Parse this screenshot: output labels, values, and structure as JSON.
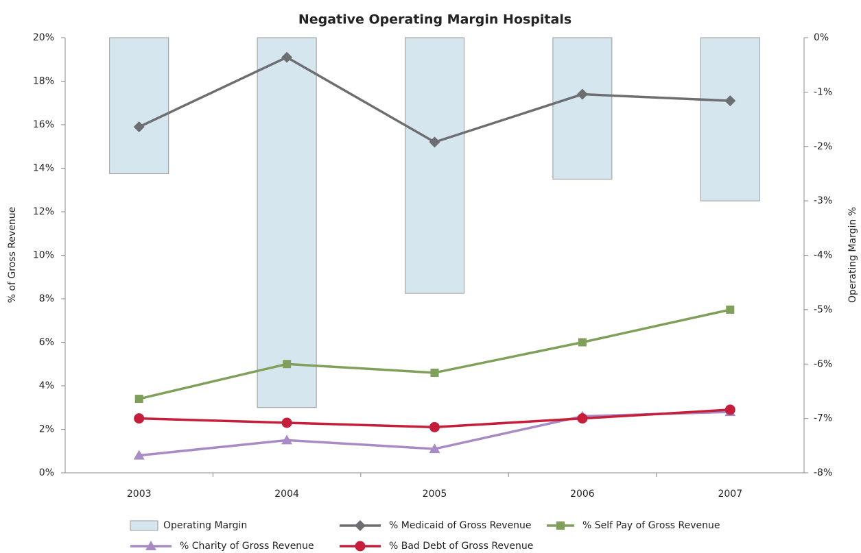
{
  "chart_data": {
    "type": "combo",
    "title": "Negative Operating Margin Hospitals",
    "y_label": "% of Gross Revenue",
    "y2_label": "Operating Margin %",
    "categories": [
      "2003",
      "2004",
      "2005",
      "2006",
      "2007"
    ],
    "ylim": [
      0,
      20
    ],
    "yticks": [
      {
        "value": 0,
        "label": "0%"
      },
      {
        "value": 2,
        "label": "2%"
      },
      {
        "value": 4,
        "label": "4%"
      },
      {
        "value": 6,
        "label": "6%"
      },
      {
        "value": 8,
        "label": "8%"
      },
      {
        "value": 10,
        "label": "10%"
      },
      {
        "value": 12,
        "label": "12%"
      },
      {
        "value": 14,
        "label": "14%"
      },
      {
        "value": 16,
        "label": "16%"
      },
      {
        "value": 18,
        "label": "18%"
      },
      {
        "value": 20,
        "label": "20%"
      }
    ],
    "y2lim": [
      -8,
      0
    ],
    "y2ticks": [
      {
        "value": -8,
        "label": "-8%"
      },
      {
        "value": -7,
        "label": "-7%"
      },
      {
        "value": -6,
        "label": "-6%"
      },
      {
        "value": -5,
        "label": "-5%"
      },
      {
        "value": -4,
        "label": "-4%"
      },
      {
        "value": -3,
        "label": "-3%"
      },
      {
        "value": -2,
        "label": "-2%"
      },
      {
        "value": -1,
        "label": "-1%"
      },
      {
        "value": 0,
        "label": "0%"
      }
    ],
    "series": [
      {
        "name": "Operating Margin",
        "type": "bar",
        "axis": "y2",
        "color": "#d5e6ef",
        "values": [
          -2.5,
          -6.8,
          -4.7,
          -2.6,
          -3.0
        ]
      },
      {
        "name": "% Medicaid of Gross Revenue",
        "type": "line",
        "marker": "diamond",
        "color": "#6d6e71",
        "values": [
          15.9,
          19.1,
          15.2,
          17.4,
          17.1
        ]
      },
      {
        "name": "% Self Pay of Gross Revenue",
        "type": "line",
        "marker": "square",
        "color": "#7f9f5a",
        "values": [
          3.4,
          5.0,
          4.6,
          6.0,
          7.5
        ]
      },
      {
        "name": "% Charity of Gross Revenue",
        "type": "line",
        "marker": "triangle",
        "color": "#a88bc4",
        "values": [
          0.8,
          1.5,
          1.1,
          2.6,
          2.8
        ]
      },
      {
        "name": "% Bad Debt of Gross Revenue",
        "type": "line",
        "marker": "circle",
        "color": "#c41e3a",
        "values": [
          2.5,
          2.3,
          2.1,
          2.5,
          2.9
        ]
      }
    ]
  }
}
